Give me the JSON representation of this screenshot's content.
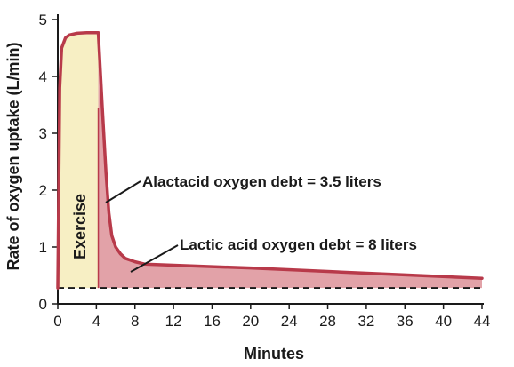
{
  "chart_data": {
    "type": "area",
    "xlabel": "Minutes",
    "ylabel": "Rate of oxygen uptake (L/min)",
    "xlim": [
      0,
      44
    ],
    "ylim": [
      0,
      5
    ],
    "xticks": [
      0,
      4,
      8,
      12,
      16,
      20,
      24,
      28,
      32,
      36,
      40,
      44
    ],
    "yticks": [
      0,
      1,
      2,
      3,
      4,
      5
    ],
    "baseline": 0.28,
    "exercise_end": 4.2,
    "series": [
      {
        "x": [
          0,
          0.2,
          0.4,
          0.8,
          1.2,
          2.0,
          3.0,
          4.2,
          4.6,
          5.0,
          5.3,
          5.6,
          6.0,
          6.5,
          7.0,
          8.0,
          9.0,
          12,
          20,
          28,
          36,
          44
        ],
        "y": [
          0.28,
          3.8,
          4.5,
          4.68,
          4.73,
          4.76,
          4.77,
          4.77,
          3.5,
          2.3,
          1.6,
          1.2,
          1.0,
          0.88,
          0.8,
          0.74,
          0.7,
          0.68,
          0.63,
          0.57,
          0.51,
          0.45
        ]
      }
    ],
    "annotations": {
      "exercise": "Exercise",
      "alactacid": "Alactacid oxygen debt = 3.5 liters",
      "lactic": "Lactic acid oxygen debt = 8 liters"
    },
    "colors": {
      "curve": "#b83a4a",
      "exercise_fill": "#f7efc4",
      "debt_fill": "#e2a2a8",
      "baseline": "#1a1a1a"
    }
  }
}
